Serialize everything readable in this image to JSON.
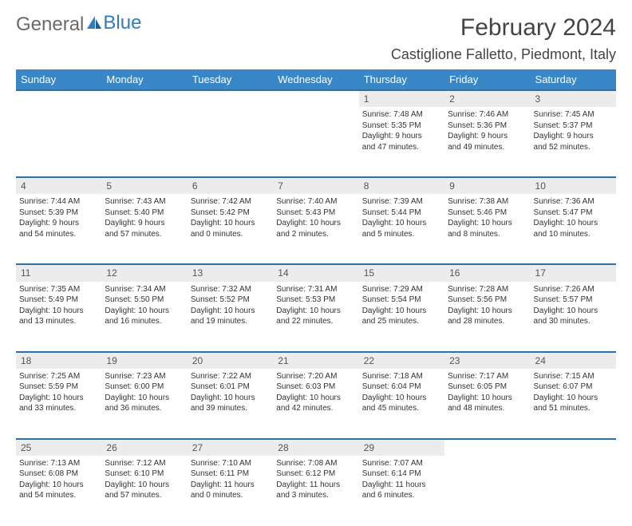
{
  "brand": {
    "part1": "General",
    "part2": "Blue"
  },
  "title": "February 2024",
  "location": "Castiglione Falletto, Piedmont, Italy",
  "style": {
    "header_bg": "#3a87c8",
    "header_text": "#ffffff",
    "daynum_bg": "#ececec",
    "row_border": "#2f6fa8",
    "brand_gray": "#6a6a6a",
    "brand_blue": "#2f7bbf",
    "body_text": "#333333",
    "title_fontsize": 30,
    "location_fontsize": 18,
    "dayhdr_fontsize": 13,
    "cell_fontsize": 10
  },
  "dayHeaders": [
    "Sunday",
    "Monday",
    "Tuesday",
    "Wednesday",
    "Thursday",
    "Friday",
    "Saturday"
  ],
  "weeks": [
    {
      "nums": [
        "",
        "",
        "",
        "",
        "1",
        "2",
        "3"
      ],
      "cells": [
        null,
        null,
        null,
        null,
        {
          "sr": "Sunrise: 7:48 AM",
          "ss": "Sunset: 5:35 PM",
          "dl1": "Daylight: 9 hours",
          "dl2": "and 47 minutes."
        },
        {
          "sr": "Sunrise: 7:46 AM",
          "ss": "Sunset: 5:36 PM",
          "dl1": "Daylight: 9 hours",
          "dl2": "and 49 minutes."
        },
        {
          "sr": "Sunrise: 7:45 AM",
          "ss": "Sunset: 5:37 PM",
          "dl1": "Daylight: 9 hours",
          "dl2": "and 52 minutes."
        }
      ]
    },
    {
      "nums": [
        "4",
        "5",
        "6",
        "7",
        "8",
        "9",
        "10"
      ],
      "cells": [
        {
          "sr": "Sunrise: 7:44 AM",
          "ss": "Sunset: 5:39 PM",
          "dl1": "Daylight: 9 hours",
          "dl2": "and 54 minutes."
        },
        {
          "sr": "Sunrise: 7:43 AM",
          "ss": "Sunset: 5:40 PM",
          "dl1": "Daylight: 9 hours",
          "dl2": "and 57 minutes."
        },
        {
          "sr": "Sunrise: 7:42 AM",
          "ss": "Sunset: 5:42 PM",
          "dl1": "Daylight: 10 hours",
          "dl2": "and 0 minutes."
        },
        {
          "sr": "Sunrise: 7:40 AM",
          "ss": "Sunset: 5:43 PM",
          "dl1": "Daylight: 10 hours",
          "dl2": "and 2 minutes."
        },
        {
          "sr": "Sunrise: 7:39 AM",
          "ss": "Sunset: 5:44 PM",
          "dl1": "Daylight: 10 hours",
          "dl2": "and 5 minutes."
        },
        {
          "sr": "Sunrise: 7:38 AM",
          "ss": "Sunset: 5:46 PM",
          "dl1": "Daylight: 10 hours",
          "dl2": "and 8 minutes."
        },
        {
          "sr": "Sunrise: 7:36 AM",
          "ss": "Sunset: 5:47 PM",
          "dl1": "Daylight: 10 hours",
          "dl2": "and 10 minutes."
        }
      ]
    },
    {
      "nums": [
        "11",
        "12",
        "13",
        "14",
        "15",
        "16",
        "17"
      ],
      "cells": [
        {
          "sr": "Sunrise: 7:35 AM",
          "ss": "Sunset: 5:49 PM",
          "dl1": "Daylight: 10 hours",
          "dl2": "and 13 minutes."
        },
        {
          "sr": "Sunrise: 7:34 AM",
          "ss": "Sunset: 5:50 PM",
          "dl1": "Daylight: 10 hours",
          "dl2": "and 16 minutes."
        },
        {
          "sr": "Sunrise: 7:32 AM",
          "ss": "Sunset: 5:52 PM",
          "dl1": "Daylight: 10 hours",
          "dl2": "and 19 minutes."
        },
        {
          "sr": "Sunrise: 7:31 AM",
          "ss": "Sunset: 5:53 PM",
          "dl1": "Daylight: 10 hours",
          "dl2": "and 22 minutes."
        },
        {
          "sr": "Sunrise: 7:29 AM",
          "ss": "Sunset: 5:54 PM",
          "dl1": "Daylight: 10 hours",
          "dl2": "and 25 minutes."
        },
        {
          "sr": "Sunrise: 7:28 AM",
          "ss": "Sunset: 5:56 PM",
          "dl1": "Daylight: 10 hours",
          "dl2": "and 28 minutes."
        },
        {
          "sr": "Sunrise: 7:26 AM",
          "ss": "Sunset: 5:57 PM",
          "dl1": "Daylight: 10 hours",
          "dl2": "and 30 minutes."
        }
      ]
    },
    {
      "nums": [
        "18",
        "19",
        "20",
        "21",
        "22",
        "23",
        "24"
      ],
      "cells": [
        {
          "sr": "Sunrise: 7:25 AM",
          "ss": "Sunset: 5:59 PM",
          "dl1": "Daylight: 10 hours",
          "dl2": "and 33 minutes."
        },
        {
          "sr": "Sunrise: 7:23 AM",
          "ss": "Sunset: 6:00 PM",
          "dl1": "Daylight: 10 hours",
          "dl2": "and 36 minutes."
        },
        {
          "sr": "Sunrise: 7:22 AM",
          "ss": "Sunset: 6:01 PM",
          "dl1": "Daylight: 10 hours",
          "dl2": "and 39 minutes."
        },
        {
          "sr": "Sunrise: 7:20 AM",
          "ss": "Sunset: 6:03 PM",
          "dl1": "Daylight: 10 hours",
          "dl2": "and 42 minutes."
        },
        {
          "sr": "Sunrise: 7:18 AM",
          "ss": "Sunset: 6:04 PM",
          "dl1": "Daylight: 10 hours",
          "dl2": "and 45 minutes."
        },
        {
          "sr": "Sunrise: 7:17 AM",
          "ss": "Sunset: 6:05 PM",
          "dl1": "Daylight: 10 hours",
          "dl2": "and 48 minutes."
        },
        {
          "sr": "Sunrise: 7:15 AM",
          "ss": "Sunset: 6:07 PM",
          "dl1": "Daylight: 10 hours",
          "dl2": "and 51 minutes."
        }
      ]
    },
    {
      "nums": [
        "25",
        "26",
        "27",
        "28",
        "29",
        "",
        ""
      ],
      "cells": [
        {
          "sr": "Sunrise: 7:13 AM",
          "ss": "Sunset: 6:08 PM",
          "dl1": "Daylight: 10 hours",
          "dl2": "and 54 minutes."
        },
        {
          "sr": "Sunrise: 7:12 AM",
          "ss": "Sunset: 6:10 PM",
          "dl1": "Daylight: 10 hours",
          "dl2": "and 57 minutes."
        },
        {
          "sr": "Sunrise: 7:10 AM",
          "ss": "Sunset: 6:11 PM",
          "dl1": "Daylight: 11 hours",
          "dl2": "and 0 minutes."
        },
        {
          "sr": "Sunrise: 7:08 AM",
          "ss": "Sunset: 6:12 PM",
          "dl1": "Daylight: 11 hours",
          "dl2": "and 3 minutes."
        },
        {
          "sr": "Sunrise: 7:07 AM",
          "ss": "Sunset: 6:14 PM",
          "dl1": "Daylight: 11 hours",
          "dl2": "and 6 minutes."
        },
        null,
        null
      ]
    }
  ]
}
